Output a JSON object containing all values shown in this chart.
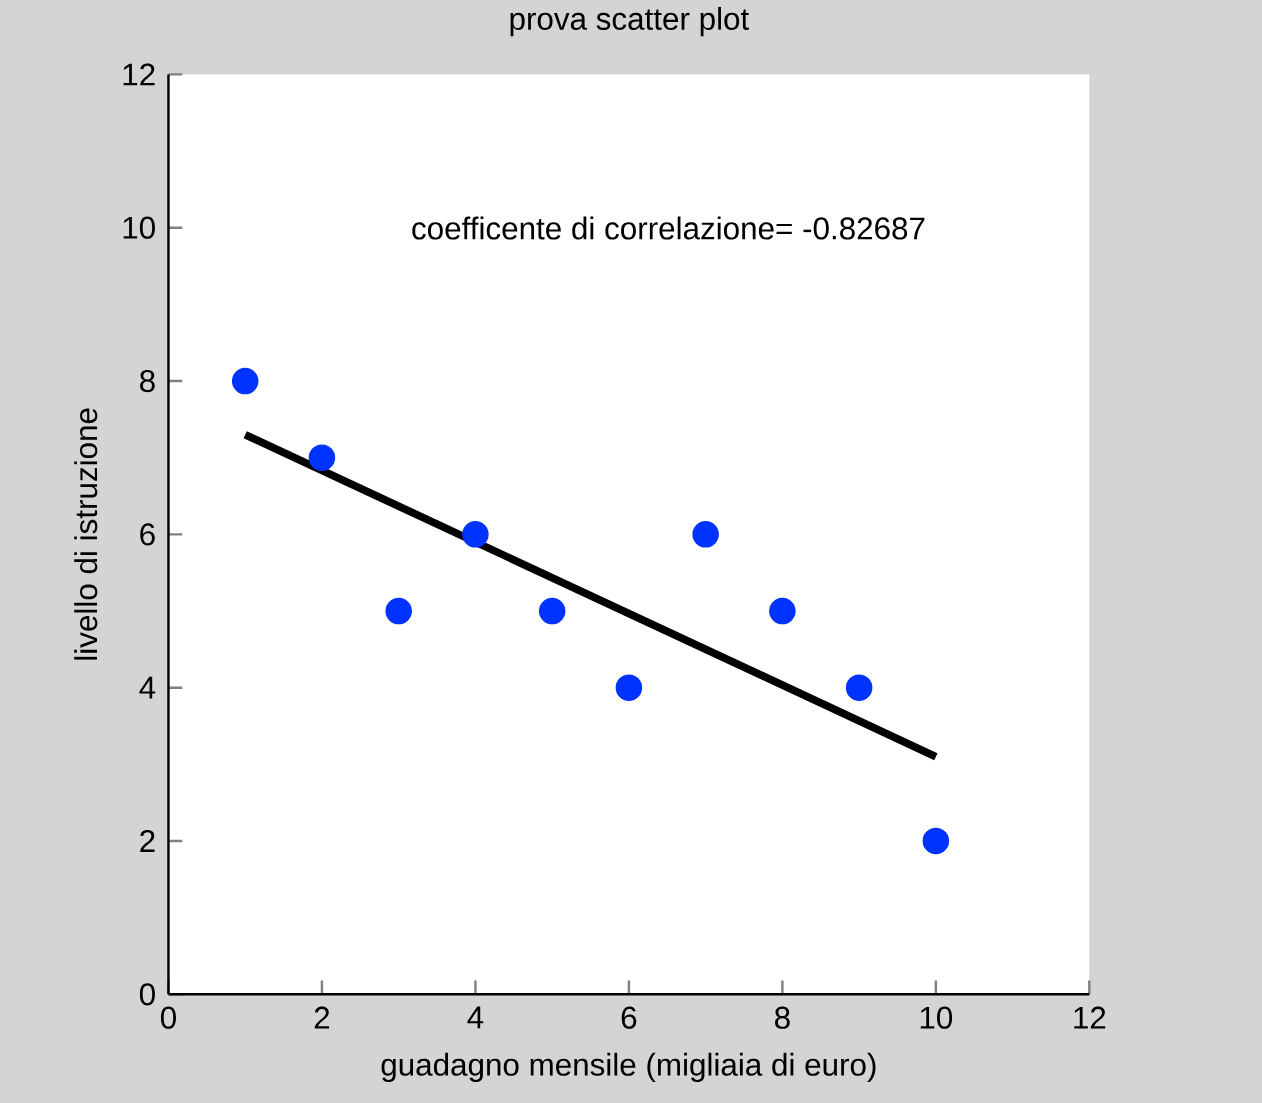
{
  "chart_data": {
    "type": "scatter",
    "title": "prova scatter plot",
    "xlabel": "guadagno mensile (migliaia di euro)",
    "ylabel": "livello di istruzione",
    "annotations": [
      "coefficente di correlazione=  -0.82687"
    ],
    "series": [
      {
        "type": "scatter",
        "color": "#0033ff",
        "marker": "circle",
        "x": [
          1,
          2,
          3,
          4,
          5,
          6,
          7,
          8,
          9,
          10
        ],
        "values": [
          8,
          7,
          5,
          6,
          5,
          4,
          6,
          5,
          4,
          2
        ]
      },
      {
        "type": "line",
        "color": "#000000",
        "marker": "none",
        "x": [
          1,
          10
        ],
        "values": [
          7.3,
          3.1
        ]
      }
    ],
    "grid": false,
    "xlim": [
      0,
      12
    ],
    "xticks": [
      0,
      2,
      4,
      6,
      8,
      10,
      12
    ],
    "ylim": [
      0,
      12
    ],
    "yticks": [
      0,
      2,
      4,
      6,
      8,
      10,
      12
    ]
  }
}
